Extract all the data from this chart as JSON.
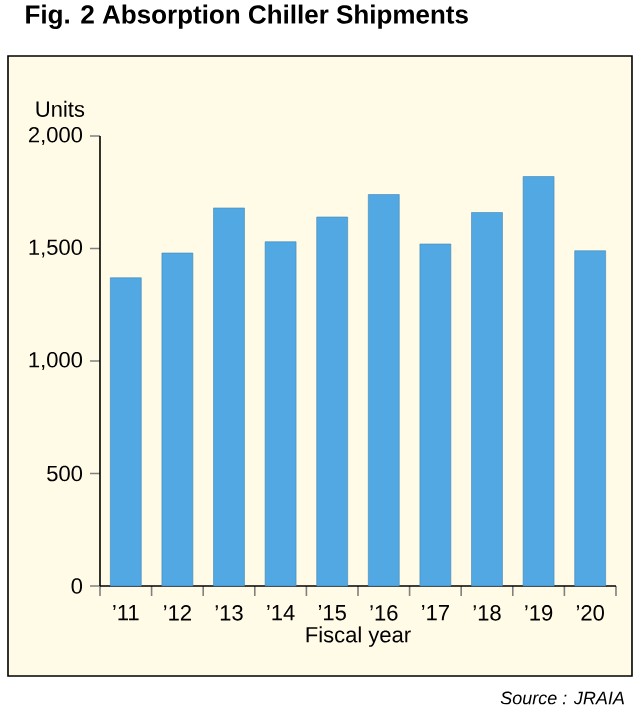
{
  "chart_data": {
    "type": "bar",
    "title": "Fig. 2  Absorption Chiller Shipments",
    "xlabel": "Fiscal year",
    "ylabel": "Units",
    "categories": [
      "’11",
      "’12",
      "’13",
      "’14",
      "’15",
      "’16",
      "’17",
      "’18",
      "’19",
      "’20"
    ],
    "values": [
      1370,
      1480,
      1680,
      1530,
      1640,
      1740,
      1520,
      1660,
      1820,
      1490
    ],
    "color": "#52a8e2",
    "ylim": [
      0,
      2000
    ],
    "yticks": [
      0,
      500,
      {
        "value": 1000,
        "label": "1,000"
      },
      {
        "value": 1500,
        "label": "1,500"
      },
      {
        "value": 2000,
        "label": "2,000"
      }
    ],
    "annotations": [
      "Source : JRAIA"
    ]
  }
}
